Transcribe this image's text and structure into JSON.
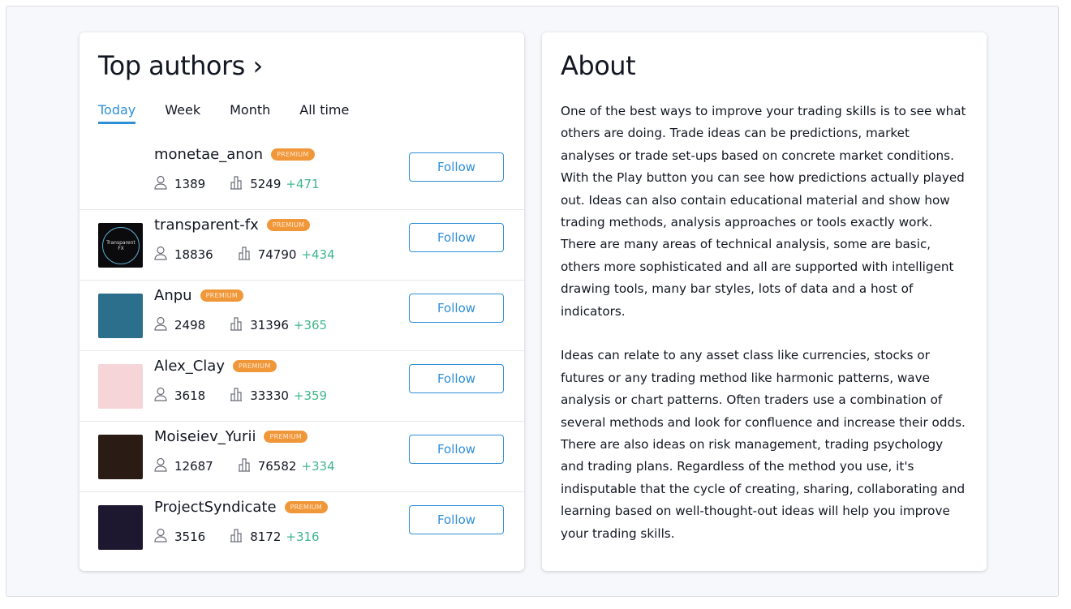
{
  "top_authors": {
    "title": "Top authors ›",
    "tabs": [
      {
        "label": "Today",
        "active": true
      },
      {
        "label": "Week",
        "active": false
      },
      {
        "label": "Month",
        "active": false
      },
      {
        "label": "All time",
        "active": false
      }
    ],
    "badge_label": "PREMIUM",
    "follow_label": "Follow",
    "authors": [
      {
        "name": "monetae_anon",
        "followers": "1389",
        "ideas": "5249",
        "delta": "+471",
        "avatar_color": "#ffffff"
      },
      {
        "name": "transparent-fx",
        "followers": "18836",
        "ideas": "74790",
        "delta": "+434",
        "avatar_color": "#0b0b0d",
        "avatar_text": "Transparent FX"
      },
      {
        "name": "Anpu",
        "followers": "2498",
        "ideas": "31396",
        "delta": "+365",
        "avatar_color": "#2c6f8c"
      },
      {
        "name": "Alex_Clay",
        "followers": "3618",
        "ideas": "33330",
        "delta": "+359",
        "avatar_color": "#f5d5d8"
      },
      {
        "name": "Moiseiev_Yurii",
        "followers": "12687",
        "ideas": "76582",
        "delta": "+334",
        "avatar_color": "#2a1c14"
      },
      {
        "name": "ProjectSyndicate",
        "followers": "3516",
        "ideas": "8172",
        "delta": "+316",
        "avatar_color": "#1d1830"
      }
    ]
  },
  "about": {
    "title": "About",
    "paragraphs": [
      "One of the best ways to improve your trading skills is to see what others are doing. Trade ideas can be predictions, market analyses or trade set-ups based on concrete market conditions. With the Play button you can see how predictions actually played out. Ideas can also contain educational material and show how trading methods, analysis approaches or tools exactly work. There are many areas of technical analysis, some are basic, others more sophisticated and all are supported with intelligent drawing tools, many bar styles, lots of data and a host of indicators.",
      "Ideas can relate to any asset class like currencies, stocks or futures or any trading method like harmonic patterns, wave analysis or chart patterns. Often traders use a combination of several methods and look for confluence and increase their odds. There are also ideas on risk management, trading psychology and trading plans. Regardless of the method you use, it's indisputable that the cycle of creating, sharing, collaborating and learning based on well-thought-out ideas will help you improve your trading skills."
    ]
  },
  "colors": {
    "accent": "#2f8fd6",
    "premium": "#f0973a",
    "positive": "#3fb68b"
  }
}
